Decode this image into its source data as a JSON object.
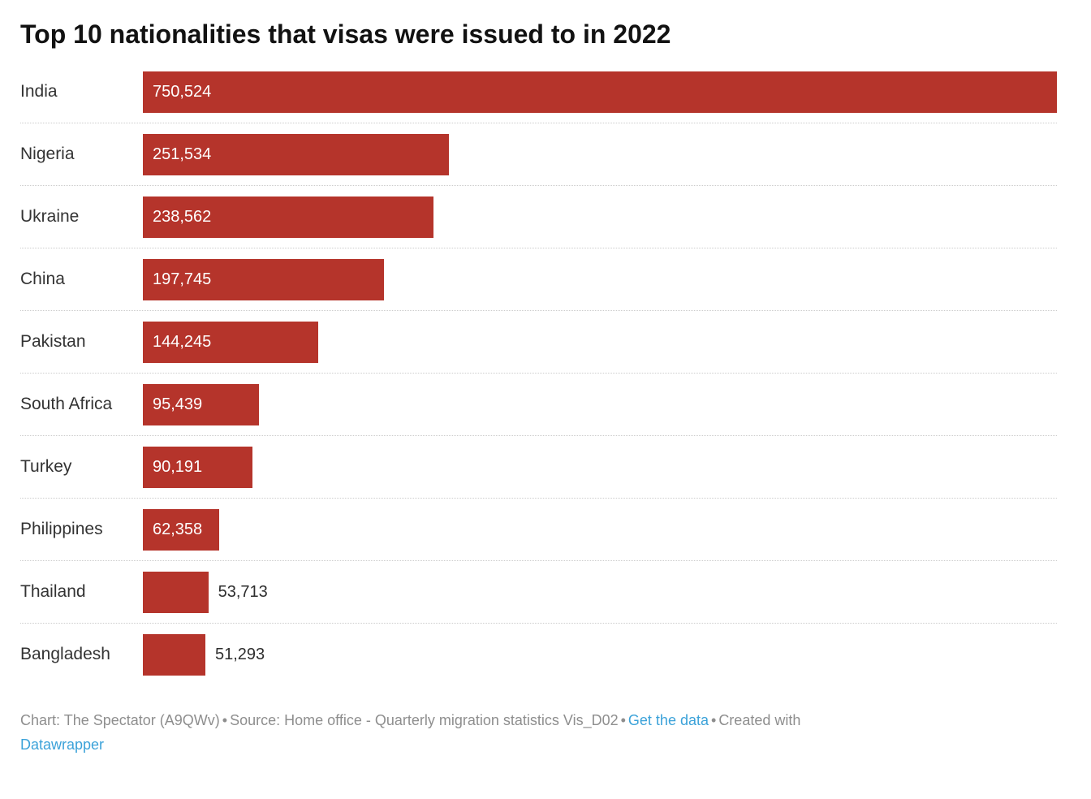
{
  "chart_data": {
    "type": "bar",
    "orientation": "horizontal",
    "title": "Top 10 nationalities that visas were issued to in 2022",
    "categories": [
      "India",
      "Nigeria",
      "Ukraine",
      "China",
      "Pakistan",
      "South Africa",
      "Turkey",
      "Philippines",
      "Thailand",
      "Bangladesh"
    ],
    "values": [
      750524,
      251534,
      238562,
      197745,
      144245,
      95439,
      90191,
      62358,
      53713,
      51293
    ],
    "value_labels": [
      "750,524",
      "251,534",
      "238,562",
      "197,745",
      "144,245",
      "95,439",
      "90,191",
      "62,358",
      "53,713",
      "51,293"
    ],
    "value_label_inside": [
      true,
      true,
      true,
      true,
      true,
      true,
      true,
      true,
      false,
      false
    ],
    "xlim": [
      0,
      750524
    ],
    "grid": false,
    "legend_position": "none"
  },
  "footer": {
    "chart_credit": "Chart: The Spectator (A9QWv)",
    "bullet": "•",
    "source": "Source: Home office - Quarterly migration statistics Vis_D02",
    "get_the_data": "Get the data",
    "created_with": "Created with",
    "datawrapper": "Datawrapper"
  },
  "colors": {
    "bar": "#b5342b",
    "title_text": "#121212",
    "category_text": "#333333",
    "value_inside_text": "#ffffff",
    "value_outside_text": "#2e2e2e",
    "separator": "#cccccc",
    "footer_text": "#8e8e8e",
    "link": "#3ba2d9"
  }
}
